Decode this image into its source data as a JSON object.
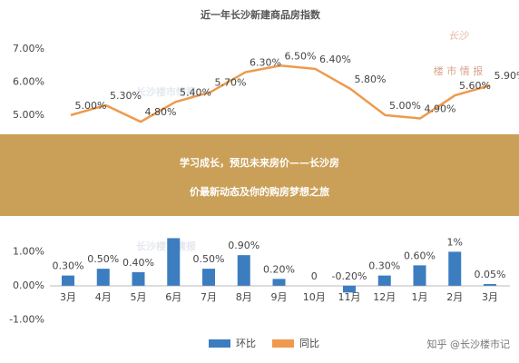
{
  "chart_data": [
    {
      "type": "line",
      "title": "近一年长沙新建商品房指数",
      "categories": [
        null,
        null,
        null,
        null,
        null,
        null,
        null,
        null,
        null,
        null,
        null,
        null,
        null
      ],
      "series": [
        {
          "name": null,
          "color": "#ee9a4d",
          "values": [
            5.0,
            5.3,
            4.8,
            5.4,
            5.7,
            6.3,
            6.5,
            6.4,
            5.8,
            5.0,
            4.9,
            5.6,
            5.9
          ],
          "value_labels": [
            "5.00%",
            "5.30%",
            "4.80%",
            "5.40%",
            "5.70%",
            "6.30%",
            "6.50%",
            "6.40%",
            "5.80%",
            "5.00%",
            "4.90%",
            "5.60%",
            "5.90%"
          ]
        }
      ],
      "ylim": [
        4.2,
        7.25
      ],
      "yticks": [
        {
          "value": 5,
          "label": "5.00%"
        },
        {
          "value": 6,
          "label": "6.00%"
        },
        {
          "value": 7,
          "label": "7.00%"
        }
      ]
    },
    {
      "type": "bar",
      "categories": [
        "3月",
        "4月",
        "5月",
        "6月",
        "7月",
        "8月",
        "9月",
        "10月",
        "11月",
        "12月",
        "1月",
        "2月",
        "3月"
      ],
      "series": [
        {
          "name": "环比",
          "color": "#3c7dc0",
          "values": [
            0.3,
            0.5,
            0.4,
            1.4,
            0.5,
            0.9,
            0.2,
            0,
            -0.2,
            0.3,
            0.6,
            1,
            0.05
          ],
          "value_labels": [
            "0.30%",
            "0.50%",
            "0.40%",
            null,
            "0.50%",
            "0.90%",
            "0.20%",
            "0",
            "-0.20%",
            "0.30%",
            "0.60%",
            "1%",
            "0.05%"
          ]
        },
        {
          "name": "同比",
          "color": "#ef9a4e",
          "values": [
            null,
            null,
            null,
            null,
            null,
            null,
            null,
            null,
            null,
            null,
            null,
            null,
            null
          ]
        }
      ],
      "ylim": [
        -1.1,
        2.2
      ],
      "yticks": [
        {
          "value": 1,
          "label": "1.00%"
        },
        {
          "value": 0,
          "label": "0.00%"
        },
        {
          "value": -1,
          "label": "-1.00%"
        }
      ]
    }
  ],
  "watermarks": {
    "logo": "长沙",
    "logo_sub": "楼 市 情 报",
    "center_top": "长沙楼市情报",
    "center_bottom": "长沙楼市情报",
    "credit": "知乎 @长沙楼市记"
  },
  "banner": {
    "lines": [
      "学习成长，预见未来房价——长沙房",
      "价最新动态及你的购房梦想之旅"
    ]
  }
}
